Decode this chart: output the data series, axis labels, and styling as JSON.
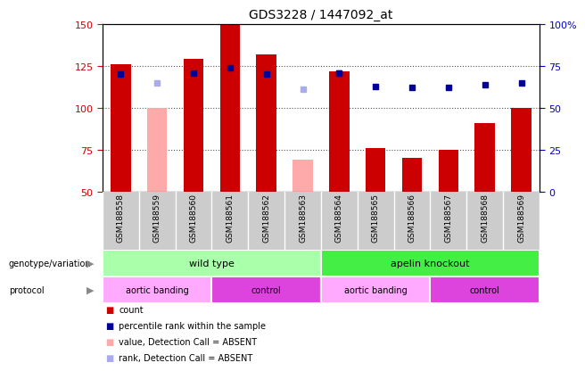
{
  "title": "GDS3228 / 1447092_at",
  "samples": [
    "GSM188558",
    "GSM188559",
    "GSM188560",
    "GSM188561",
    "GSM188562",
    "GSM188563",
    "GSM188564",
    "GSM188565",
    "GSM188566",
    "GSM188567",
    "GSM188568",
    "GSM188569"
  ],
  "bar_values": [
    126,
    null,
    129,
    150,
    132,
    null,
    122,
    76,
    70,
    75,
    91,
    100
  ],
  "bar_absent_values": [
    null,
    100,
    null,
    null,
    null,
    69,
    null,
    null,
    null,
    null,
    null,
    null
  ],
  "rank_values": [
    120,
    null,
    121,
    124,
    120,
    null,
    121,
    null,
    null,
    null,
    null,
    null
  ],
  "rank_absent_values": [
    null,
    115,
    null,
    null,
    null,
    111,
    null,
    null,
    null,
    null,
    null,
    null
  ],
  "percentile_values": [
    null,
    null,
    null,
    null,
    null,
    null,
    121,
    113,
    112,
    112,
    114,
    115
  ],
  "ylim_left": [
    50,
    150
  ],
  "ylim_right": [
    0,
    100
  ],
  "yticks_left": [
    50,
    75,
    100,
    125,
    150
  ],
  "yticks_right": [
    0,
    25,
    50,
    75,
    100
  ],
  "bar_color": "#cc0000",
  "bar_absent_color": "#ffaaaa",
  "rank_color": "#000099",
  "rank_absent_color": "#aaaaee",
  "percentile_color": "#000099",
  "bg_color": "#ffffff",
  "plot_bg": "#ffffff",
  "grid_color": "#555555",
  "genotype_wild": "wild type",
  "genotype_ko": "apelin knockout",
  "genotype_wild_color": "#aaffaa",
  "genotype_ko_color": "#44ee44",
  "protocol_aortic": "aortic banding",
  "protocol_control": "control",
  "protocol_aortic_color": "#ffaaff",
  "protocol_control_color": "#dd44dd",
  "left_label_color": "#cc0000",
  "right_label_color": "#0000cc",
  "legend_items": [
    "count",
    "percentile rank within the sample",
    "value, Detection Call = ABSENT",
    "rank, Detection Call = ABSENT"
  ],
  "legend_colors": [
    "#cc0000",
    "#000099",
    "#ffaaaa",
    "#aaaaee"
  ],
  "bar_width": 0.55,
  "sample_bg_color": "#cccccc",
  "arrow_color": "#888888"
}
